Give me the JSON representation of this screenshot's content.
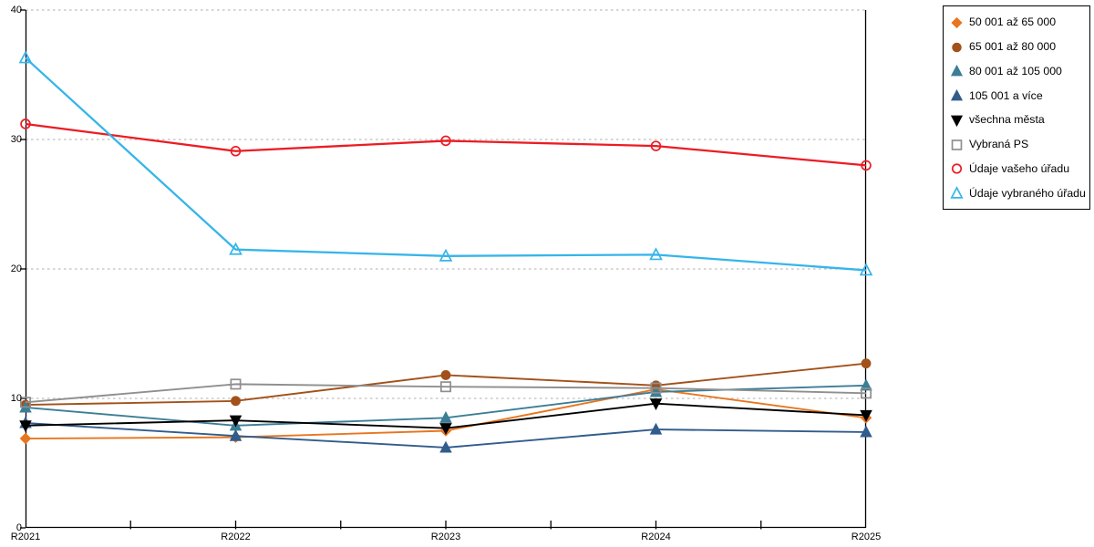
{
  "chart_data": {
    "type": "line",
    "title": "",
    "xlabel": "",
    "ylabel": "",
    "x_labels": [
      "R2021",
      "R2022",
      "R2023",
      "R2024",
      "R2025"
    ],
    "ylim": [
      0,
      40
    ],
    "yticks": [
      0,
      10,
      20,
      30,
      40
    ],
    "grid": "horizontal-dotted",
    "legend_position": "top-right-outside",
    "series": [
      {
        "name": "50 001 až 65 000",
        "color": "#E8761F",
        "marker": "diamond",
        "filled": true,
        "line_width": 1.9,
        "values": [
          6.9,
          7.0,
          7.5,
          10.7,
          8.5
        ]
      },
      {
        "name": "65 001 až 80 000",
        "color": "#A3511A",
        "marker": "circle",
        "filled": true,
        "line_width": 1.9,
        "values": [
          9.5,
          9.8,
          11.8,
          11.0,
          12.7
        ]
      },
      {
        "name": "80 001 až 105 000",
        "color": "#3B7E96",
        "marker": "triangle-up",
        "filled": true,
        "line_width": 1.9,
        "values": [
          9.3,
          7.9,
          8.5,
          10.5,
          11.0
        ]
      },
      {
        "name": "105 001 a více",
        "color": "#315C8C",
        "marker": "triangle-up",
        "filled": true,
        "line_width": 1.9,
        "values": [
          8.1,
          7.1,
          6.2,
          7.6,
          7.4
        ]
      },
      {
        "name": "všechna města",
        "color": "#000000",
        "marker": "triangle-down",
        "filled": true,
        "line_width": 1.9,
        "values": [
          7.9,
          8.3,
          7.7,
          9.6,
          8.7
        ]
      },
      {
        "name": "Vybraná PS",
        "color": "#8F8F8F",
        "marker": "square",
        "filled": false,
        "line_width": 1.9,
        "values": [
          9.7,
          11.1,
          10.9,
          10.8,
          10.4
        ]
      },
      {
        "name": "Údaje vašeho úřadu",
        "color": "#EC1C24",
        "marker": "circle",
        "filled": false,
        "line_width": 2.3,
        "values": [
          31.2,
          29.1,
          29.9,
          29.5,
          28.0
        ]
      },
      {
        "name": "Údaje vybraného úřadu",
        "color": "#36B5E9",
        "marker": "triangle-up",
        "filled": false,
        "line_width": 2.3,
        "values": [
          36.3,
          21.5,
          21.0,
          21.1,
          19.9
        ]
      }
    ]
  },
  "colors": {
    "background": "#ffffff",
    "axis": "#000000",
    "gridline": "#BDBDBD",
    "legend_border": "#000000"
  }
}
